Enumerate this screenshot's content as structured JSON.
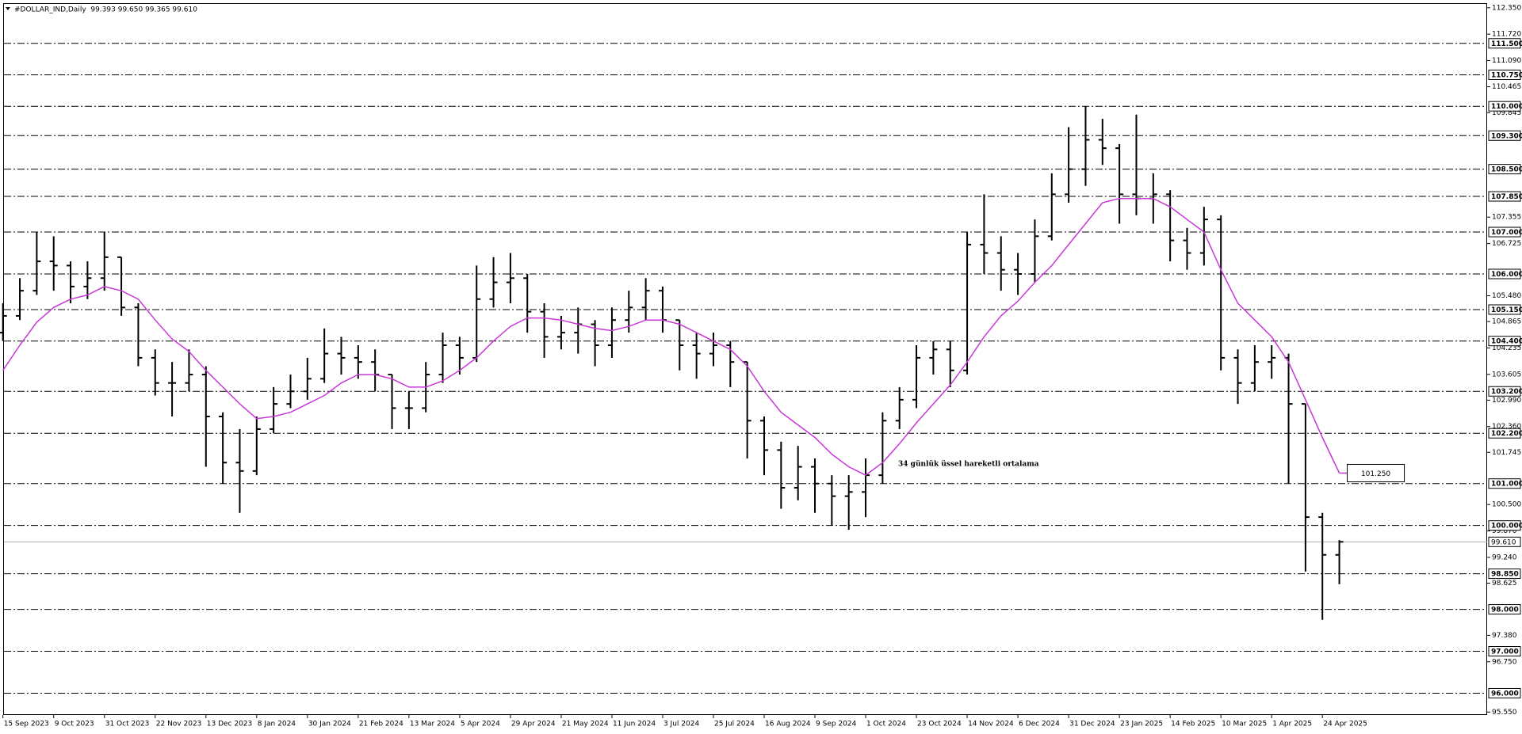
{
  "chart_data": {
    "type": "ohlc",
    "title": "#DOLLAR_IND,Daily  99.393 99.650 99.365 99.610",
    "annotation": "34 günlük üssel hareketli ortalama",
    "ema_label": {
      "value": 101.25,
      "label": "101.250"
    },
    "color": "#000000",
    "categories": [
      "15 Sep 2023",
      null,
      null,
      "9 Oct 2023",
      null,
      null,
      "31 Oct 2023",
      null,
      null,
      "22 Nov 2023",
      null,
      null,
      "13 Dec 2023",
      null,
      null,
      "8 Jan 2024",
      null,
      null,
      "30 Jan 2024",
      null,
      null,
      "21 Feb 2024",
      null,
      null,
      "13 Mar 2024",
      null,
      null,
      "5 Apr 2024",
      null,
      null,
      "29 Apr 2024",
      null,
      null,
      "21 May 2024",
      null,
      null,
      "11 Jun 2024",
      null,
      null,
      "3 Jul 2024",
      null,
      null,
      "25 Jul 2024",
      null,
      null,
      "16 Aug 2024",
      null,
      null,
      "9 Sep 2024",
      null,
      null,
      "1 Oct 2024",
      null,
      null,
      "23 Oct 2024",
      null,
      null,
      "14 Nov 2024",
      null,
      null,
      "6 Dec 2024",
      null,
      null,
      "31 Dec 2024",
      null,
      null,
      "23 Jan 2025",
      null,
      null,
      "14 Feb 2025",
      null,
      null,
      "10 Mar 2025",
      null,
      null,
      "1 Apr 2025",
      null,
      null,
      "24 Apr 2025",
      null
    ],
    "open": [
      104.6,
      105.0,
      105.6,
      106.3,
      106.2,
      105.7,
      105.9,
      106.4,
      105.2,
      104.0,
      103.4,
      103.4,
      103.6,
      102.6,
      101.5,
      101.3,
      102.3,
      102.9,
      103.2,
      103.5,
      104.1,
      104.0,
      103.9,
      103.6,
      102.8,
      102.8,
      103.6,
      104.3,
      104.0,
      105.4,
      105.8,
      105.9,
      105.1,
      104.5,
      104.6,
      104.8,
      104.3,
      104.9,
      105.2,
      105.6,
      104.9,
      104.3,
      104.1,
      104.3,
      103.9,
      102.5,
      101.8,
      100.9,
      101.4,
      101.0,
      100.7,
      100.8,
      101.2,
      102.5,
      103.0,
      104.0,
      104.2,
      103.7,
      106.7,
      106.5,
      106.1,
      106.0,
      106.9,
      107.9,
      108.5,
      109.2,
      109.0,
      107.9,
      107.8,
      107.9,
      106.8,
      106.5,
      107.3,
      104.0,
      103.4,
      103.9,
      104.0,
      102.9,
      100.2,
      99.3
    ],
    "high": [
      105.3,
      105.9,
      107.0,
      106.9,
      106.3,
      106.3,
      107.0,
      106.4,
      105.3,
      104.2,
      103.9,
      104.2,
      103.8,
      102.7,
      102.3,
      102.6,
      103.3,
      103.6,
      104.0,
      104.7,
      104.5,
      104.3,
      104.2,
      103.6,
      103.2,
      103.9,
      104.6,
      104.5,
      106.2,
      106.4,
      106.5,
      106.0,
      105.3,
      105.0,
      105.2,
      104.9,
      105.2,
      105.6,
      105.9,
      105.7,
      104.9,
      104.6,
      104.6,
      104.4,
      103.9,
      102.6,
      102.0,
      101.9,
      101.6,
      101.2,
      101.2,
      101.6,
      102.7,
      103.3,
      104.3,
      104.4,
      104.4,
      107.0,
      107.9,
      106.9,
      106.5,
      107.3,
      108.4,
      109.5,
      110.0,
      109.7,
      109.1,
      109.8,
      108.4,
      108.0,
      107.1,
      107.6,
      107.4,
      104.2,
      104.3,
      104.3,
      104.1,
      102.9,
      100.3,
      99.65
    ],
    "low": [
      104.4,
      104.9,
      105.5,
      105.6,
      105.3,
      105.4,
      105.6,
      105.0,
      103.8,
      103.1,
      102.6,
      103.2,
      101.4,
      101.0,
      100.3,
      101.2,
      102.2,
      102.8,
      103.0,
      103.4,
      103.6,
      103.5,
      103.2,
      102.3,
      102.3,
      102.7,
      103.4,
      103.6,
      103.9,
      105.2,
      105.3,
      104.6,
      104.0,
      104.2,
      104.1,
      103.8,
      104.0,
      104.6,
      104.9,
      104.6,
      103.7,
      103.5,
      103.8,
      103.3,
      101.6,
      101.2,
      100.4,
      100.6,
      100.3,
      100.0,
      99.9,
      100.2,
      101.0,
      102.3,
      102.8,
      103.6,
      103.3,
      103.6,
      106.0,
      105.6,
      105.5,
      105.8,
      106.8,
      107.7,
      108.1,
      108.6,
      107.2,
      107.4,
      107.2,
      106.3,
      106.1,
      106.2,
      103.7,
      102.9,
      103.2,
      103.5,
      101.0,
      98.9,
      97.75,
      98.6
    ],
    "close": [
      105.0,
      105.6,
      106.3,
      106.2,
      105.7,
      105.9,
      106.4,
      105.2,
      104.0,
      103.4,
      103.4,
      103.6,
      102.6,
      101.5,
      101.3,
      102.3,
      102.9,
      103.2,
      103.5,
      104.1,
      104.0,
      103.9,
      103.6,
      102.8,
      102.8,
      103.6,
      104.3,
      104.0,
      105.4,
      105.8,
      105.9,
      105.1,
      104.5,
      104.6,
      104.8,
      104.3,
      104.9,
      105.2,
      105.6,
      104.9,
      104.3,
      104.1,
      104.3,
      103.9,
      102.5,
      101.8,
      100.9,
      101.4,
      101.0,
      100.7,
      100.8,
      101.2,
      102.5,
      103.0,
      104.0,
      104.2,
      103.7,
      106.7,
      106.5,
      106.1,
      106.0,
      106.9,
      107.9,
      108.5,
      109.2,
      109.0,
      107.9,
      107.8,
      107.9,
      106.8,
      106.5,
      107.3,
      104.0,
      103.4,
      103.9,
      104.0,
      102.9,
      100.2,
      99.3,
      99.61
    ],
    "ema": {
      "color": "#c838d8",
      "values": [
        103.7,
        104.3,
        104.85,
        105.2,
        105.4,
        105.5,
        105.7,
        105.6,
        105.4,
        104.9,
        104.45,
        104.15,
        103.7,
        103.3,
        102.9,
        102.55,
        102.6,
        102.7,
        102.9,
        103.1,
        103.4,
        103.6,
        103.6,
        103.5,
        103.3,
        103.3,
        103.45,
        103.7,
        104.0,
        104.4,
        104.75,
        104.95,
        104.95,
        104.9,
        104.8,
        104.7,
        104.65,
        104.75,
        104.9,
        104.9,
        104.8,
        104.6,
        104.4,
        104.2,
        103.8,
        103.2,
        102.7,
        102.4,
        102.1,
        101.7,
        101.4,
        101.2,
        101.5,
        101.95,
        102.45,
        102.9,
        103.35,
        103.9,
        104.5,
        105.0,
        105.35,
        105.8,
        106.2,
        106.7,
        107.2,
        107.7,
        107.8,
        107.8,
        107.8,
        107.6,
        107.3,
        107.0,
        106.1,
        105.3,
        104.9,
        104.5,
        103.9,
        103.0,
        102.1,
        101.25
      ]
    },
    "ylim": [
      95.48,
      112.44
    ],
    "yticks": [
      {
        "value": 112.35,
        "label": "112.350"
      },
      {
        "value": 111.72,
        "label": "111.720"
      },
      {
        "value": 111.09,
        "label": "111.090"
      },
      {
        "value": 110.465,
        "label": "110.465"
      },
      {
        "value": 109.845,
        "label": "109.845"
      },
      {
        "value": 107.355,
        "label": "107.355"
      },
      {
        "value": 106.725,
        "label": "106.725"
      },
      {
        "value": 105.48,
        "label": "105.480"
      },
      {
        "value": 104.865,
        "label": "104.865"
      },
      {
        "value": 104.235,
        "label": "104.235"
      },
      {
        "value": 103.605,
        "label": "103.605"
      },
      {
        "value": 102.99,
        "label": "102.990"
      },
      {
        "value": 102.36,
        "label": "102.360"
      },
      {
        "value": 101.745,
        "label": "101.745"
      },
      {
        "value": 100.5,
        "label": "100.500"
      },
      {
        "value": 99.87,
        "label": "99.870"
      },
      {
        "value": 99.24,
        "label": "99.240"
      },
      {
        "value": 98.625,
        "label": "98.625"
      },
      {
        "value": 97.38,
        "label": "97.380"
      },
      {
        "value": 96.75,
        "label": "96.750"
      },
      {
        "value": 95.55,
        "label": "95.550"
      }
    ],
    "levels": [
      {
        "value": 111.5,
        "label": "111.500"
      },
      {
        "value": 110.75,
        "label": "110.750"
      },
      {
        "value": 110,
        "label": "110.000"
      },
      {
        "value": 109.3,
        "label": "109.300"
      },
      {
        "value": 108.5,
        "label": "108.500"
      },
      {
        "value": 107.85,
        "label": "107.850"
      },
      {
        "value": 107,
        "label": "107.000"
      },
      {
        "value": 106,
        "label": "106.000"
      },
      {
        "value": 105.15,
        "label": "105.150"
      },
      {
        "value": 104.4,
        "label": "104.400"
      },
      {
        "value": 103.2,
        "label": "103.200"
      },
      {
        "value": 102.2,
        "label": "102.200"
      },
      {
        "value": 101,
        "label": "101.000"
      },
      {
        "value": 100,
        "label": "100.000"
      },
      {
        "value": 98.85,
        "label": "98.850"
      },
      {
        "value": 98,
        "label": "98.000"
      },
      {
        "value": 97,
        "label": "97.000"
      },
      {
        "value": 96,
        "label": "96.000"
      }
    ],
    "current_price": {
      "value": 99.61,
      "label": "99.610"
    }
  }
}
